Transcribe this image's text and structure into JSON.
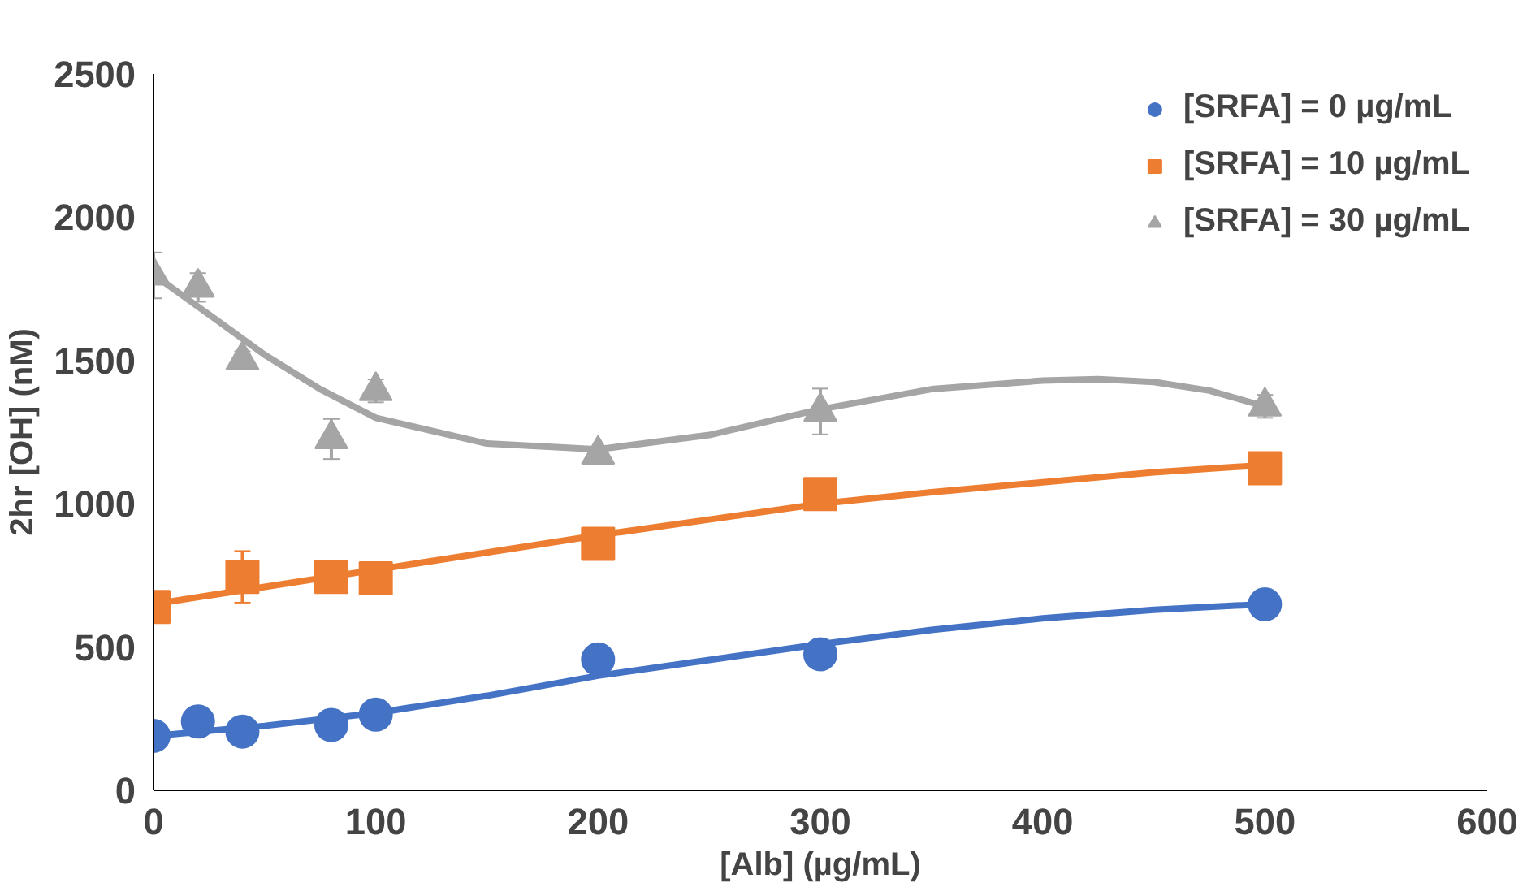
{
  "chart_data": {
    "type": "scatter",
    "xlabel": "[Alb] (µg/mL)",
    "ylabel": "2hr [OH] (nM)",
    "xlim": [
      0,
      600
    ],
    "xticks": [
      0,
      100,
      200,
      300,
      400,
      500,
      600
    ],
    "ylim": [
      0,
      2500
    ],
    "yticks": [
      0,
      500,
      1000,
      1500,
      2000,
      2500
    ],
    "grid": false,
    "legend": "top right",
    "series": [
      {
        "name": "[SRFA] = 0 µg/mL",
        "color": "#4472c4",
        "marker": "circle",
        "x": [
          0,
          20,
          40,
          80,
          100,
          200,
          300,
          500
        ],
        "values": [
          190,
          240,
          205,
          228,
          264,
          457,
          475,
          649
        ],
        "errors": [
          null,
          null,
          null,
          null,
          null,
          null,
          null,
          null
        ]
      },
      {
        "name": "[SRFA] = 10 µg/mL",
        "color": "#ed7d31",
        "marker": "square",
        "x": [
          0,
          40,
          80,
          100,
          200,
          300,
          500
        ],
        "values": [
          640,
          745,
          745,
          740,
          860,
          1034,
          1124
        ],
        "errors": [
          30,
          90,
          30,
          30,
          30,
          50,
          30
        ]
      },
      {
        "name": "[SRFA] = 30 µg/mL",
        "color": "#a5a5a5",
        "marker": "triangle",
        "x": [
          0,
          20,
          40,
          80,
          100,
          200,
          300,
          500
        ],
        "values": [
          1797,
          1755,
          1502,
          1226,
          1394,
          1172,
          1322,
          1340
        ],
        "errors": [
          80,
          50,
          30,
          70,
          40,
          25,
          80,
          40
        ]
      },
      {
        "type": "line",
        "color": "#4472c4",
        "x": [
          0,
          50,
          100,
          150,
          200,
          250,
          300,
          350,
          400,
          450,
          500
        ],
        "values": [
          190,
          225,
          270,
          330,
          400,
          455,
          510,
          560,
          600,
          630,
          650
        ]
      },
      {
        "type": "line",
        "color": "#ed7d31",
        "x": [
          0,
          50,
          100,
          150,
          200,
          250,
          300,
          350,
          400,
          450,
          500
        ],
        "values": [
          650,
          710,
          770,
          830,
          890,
          945,
          1000,
          1040,
          1075,
          1110,
          1135
        ]
      },
      {
        "type": "line",
        "color": "#a5a5a5",
        "x": [
          0,
          25,
          50,
          75,
          100,
          150,
          200,
          250,
          300,
          350,
          400,
          425,
          450,
          475,
          500
        ],
        "values": [
          1800,
          1660,
          1520,
          1400,
          1300,
          1210,
          1190,
          1240,
          1330,
          1400,
          1430,
          1435,
          1425,
          1395,
          1340
        ]
      }
    ]
  }
}
